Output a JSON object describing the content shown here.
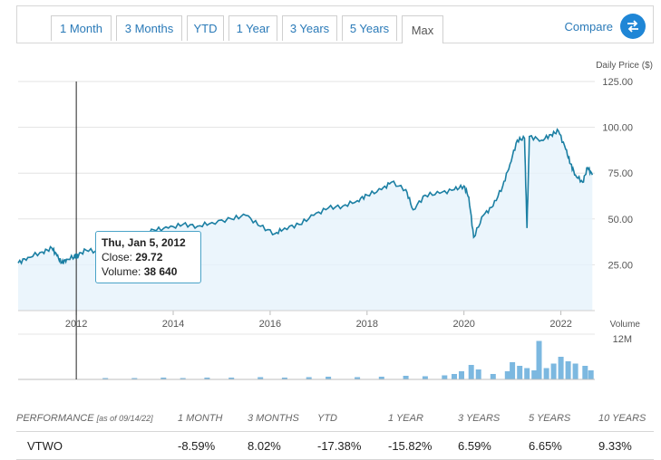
{
  "tabs": [
    "1 Month",
    "3 Months",
    "YTD",
    "1 Year",
    "3 Years",
    "5 Years",
    "Max"
  ],
  "active_tab": "Max",
  "compare_label": "Compare",
  "icons": {
    "compare": "swap-arrows-icon"
  },
  "colors": {
    "line": "#1b7fa3",
    "fill": "#e6f2fb",
    "volume": "#7cb8e0",
    "link": "#2a7ab8",
    "accent": "#1f86d6"
  },
  "price_axis_label": "Daily Price ($)",
  "volume_axis_label": "Volume",
  "volume_max_label": "12M",
  "tooltip": {
    "date": "Thu, Jan 5, 2012",
    "close_label": "Close:",
    "close_value": "29.72",
    "volume_label": "Volume:",
    "volume_value": "38 640"
  },
  "chart_data": {
    "type": "line",
    "ylabel": "Daily Price ($)",
    "ylim": [
      0,
      125
    ],
    "y_ticks": [
      "25.00",
      "50.00",
      "75.00",
      "100.00",
      "125.00"
    ],
    "x_ticks": [
      "2012",
      "2014",
      "2016",
      "2018",
      "2020",
      "2022"
    ],
    "xlim": [
      2010.8,
      2022.7
    ],
    "grid": true,
    "series": [
      {
        "values": [
          [
            2010.8,
            26
          ],
          [
            2011.0,
            29
          ],
          [
            2011.3,
            32
          ],
          [
            2011.5,
            34
          ],
          [
            2011.6,
            30
          ],
          [
            2011.7,
            26
          ],
          [
            2011.8,
            28
          ],
          [
            2012.0,
            29.7
          ],
          [
            2012.2,
            33
          ],
          [
            2012.5,
            32
          ],
          [
            2012.8,
            33
          ],
          [
            2013.0,
            36
          ],
          [
            2013.3,
            40
          ],
          [
            2013.6,
            44
          ],
          [
            2013.9,
            45
          ],
          [
            2014.2,
            47
          ],
          [
            2014.5,
            46
          ],
          [
            2014.8,
            48
          ],
          [
            2015.2,
            50
          ],
          [
            2015.5,
            52
          ],
          [
            2015.8,
            46
          ],
          [
            2016.1,
            42
          ],
          [
            2016.3,
            45
          ],
          [
            2016.6,
            47
          ],
          [
            2016.9,
            52
          ],
          [
            2017.2,
            56
          ],
          [
            2017.5,
            57
          ],
          [
            2017.8,
            60
          ],
          [
            2018.0,
            63
          ],
          [
            2018.3,
            66
          ],
          [
            2018.5,
            70
          ],
          [
            2018.8,
            66
          ],
          [
            2018.95,
            55
          ],
          [
            2019.2,
            63
          ],
          [
            2019.5,
            64
          ],
          [
            2019.8,
            66
          ],
          [
            2020.0,
            68
          ],
          [
            2020.1,
            62
          ],
          [
            2020.2,
            40
          ],
          [
            2020.4,
            52
          ],
          [
            2020.6,
            57
          ],
          [
            2020.8,
            68
          ],
          [
            2020.95,
            80
          ],
          [
            2021.1,
            93
          ],
          [
            2021.25,
            94
          ],
          [
            2021.3,
            45
          ],
          [
            2021.35,
            95
          ],
          [
            2021.6,
            93
          ],
          [
            2021.8,
            96
          ],
          [
            2021.95,
            98
          ],
          [
            2022.1,
            88
          ],
          [
            2022.2,
            80
          ],
          [
            2022.3,
            74
          ],
          [
            2022.45,
            70
          ],
          [
            2022.55,
            78
          ],
          [
            2022.65,
            74
          ]
        ]
      }
    ],
    "volume": {
      "ymax_label": "12M",
      "bars": [
        [
          2012.6,
          0.03
        ],
        [
          2013.2,
          0.03
        ],
        [
          2013.8,
          0.04
        ],
        [
          2014.2,
          0.03
        ],
        [
          2014.7,
          0.04
        ],
        [
          2015.2,
          0.04
        ],
        [
          2015.8,
          0.05
        ],
        [
          2016.3,
          0.04
        ],
        [
          2016.8,
          0.05
        ],
        [
          2017.2,
          0.06
        ],
        [
          2017.8,
          0.05
        ],
        [
          2018.3,
          0.06
        ],
        [
          2018.8,
          0.08
        ],
        [
          2019.2,
          0.07
        ],
        [
          2019.6,
          0.09
        ],
        [
          2019.8,
          0.12
        ],
        [
          2019.95,
          0.18
        ],
        [
          2020.15,
          0.32
        ],
        [
          2020.3,
          0.22
        ],
        [
          2020.6,
          0.12
        ],
        [
          2020.9,
          0.18
        ],
        [
          2021.0,
          0.38
        ],
        [
          2021.15,
          0.3
        ],
        [
          2021.3,
          0.25
        ],
        [
          2021.45,
          0.2
        ],
        [
          2021.55,
          0.85
        ],
        [
          2021.7,
          0.25
        ],
        [
          2021.85,
          0.35
        ],
        [
          2022.0,
          0.5
        ],
        [
          2022.15,
          0.4
        ],
        [
          2022.3,
          0.35
        ],
        [
          2022.5,
          0.3
        ],
        [
          2022.62,
          0.2
        ]
      ]
    }
  },
  "performance": {
    "title": "PERFORMANCE",
    "as_of": "[as of 09/14/22]",
    "headers": [
      "1 MONTH",
      "3 MONTHS",
      "YTD",
      "1 YEAR",
      "3 YEARS",
      "5 YEARS",
      "10 YEARS"
    ],
    "ticker": "VTWO",
    "values": [
      "-8.59%",
      "8.02%",
      "-17.38%",
      "-15.82%",
      "6.59%",
      "6.65%",
      "9.33%"
    ]
  }
}
